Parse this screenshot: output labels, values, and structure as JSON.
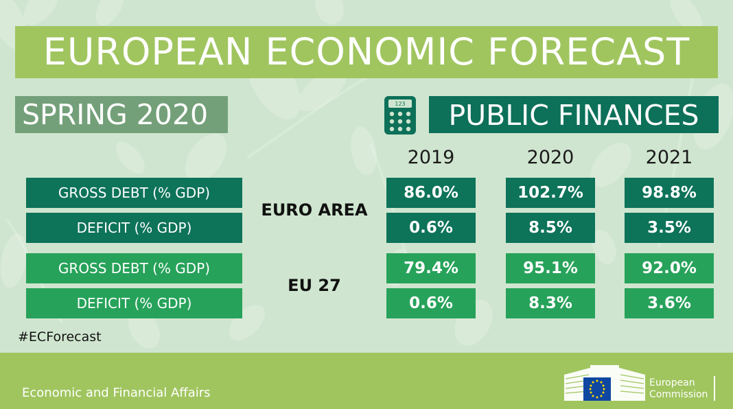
{
  "header": {
    "title": "EUROPEAN ECONOMIC FORECAST",
    "season": "SPRING 2020",
    "topic": "PUBLIC FINANCES",
    "topic_icon": "calculator-icon"
  },
  "table": {
    "years": [
      "2019",
      "2020",
      "2021"
    ],
    "groups": [
      {
        "name": "EURO AREA",
        "rows": [
          {
            "label": "GROSS DEBT (% GDP)",
            "values": [
              "86.0%",
              "102.7%",
              "98.8%"
            ]
          },
          {
            "label": "DEFICIT (% GDP)",
            "values": [
              "0.6%",
              "8.5%",
              "3.5%"
            ]
          }
        ]
      },
      {
        "name": "EU 27",
        "rows": [
          {
            "label": "GROSS DEBT (% GDP)",
            "values": [
              "79.4%",
              "95.1%",
              "92.0%"
            ]
          },
          {
            "label": "DEFICIT (% GDP)",
            "values": [
              "0.6%",
              "8.3%",
              "3.6%"
            ]
          }
        ]
      }
    ]
  },
  "hashtag": "#ECForecast",
  "footer": {
    "department": "Economic and Financial Affairs",
    "logo_line1": "European",
    "logo_line2": "Commission"
  },
  "colors": {
    "background": "#cfe5cf",
    "accent_green": "#a0c55f",
    "dark_green": "#0d7359",
    "light_green": "#27a25a",
    "season_green": "#74a079"
  }
}
